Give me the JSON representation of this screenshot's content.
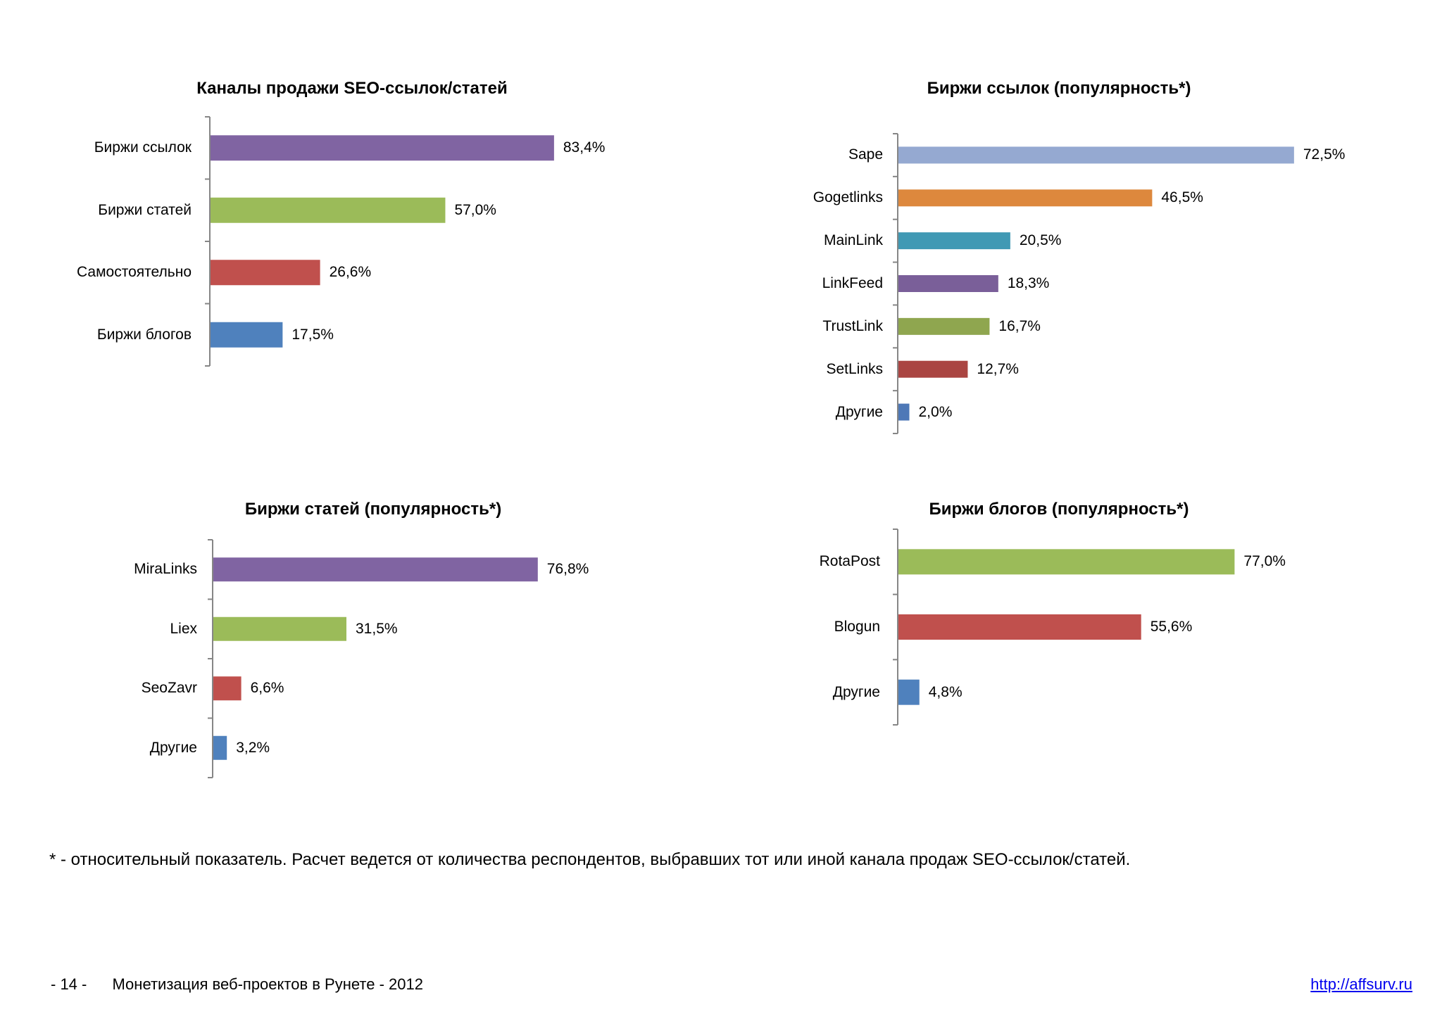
{
  "chart_data": [
    {
      "type": "bar",
      "orientation": "horizontal",
      "title": "Каналы продажи SEO-ссылок/статей",
      "categories": [
        "Биржи ссылок",
        "Биржи статей",
        "Самостоятельно",
        "Биржи блогов"
      ],
      "values": [
        83.4,
        57.0,
        26.6,
        17.5
      ],
      "value_labels": [
        "83,4%",
        "57,0%",
        "26,6%",
        "17,5%"
      ],
      "colors": [
        "#8064a2",
        "#9bbb59",
        "#c0504d",
        "#4f81bd"
      ],
      "xlim": [
        0,
        100
      ],
      "xlabel": "",
      "ylabel": ""
    },
    {
      "type": "bar",
      "orientation": "horizontal",
      "title": "Биржи ссылок (популярность*)",
      "categories": [
        "Sape",
        "Gogetlinks",
        "MainLink",
        "LinkFeed",
        "TrustLink",
        "SetLinks",
        "Другие"
      ],
      "values": [
        72.5,
        46.5,
        20.5,
        18.3,
        16.7,
        12.7,
        2.0
      ],
      "value_labels": [
        "72,5%",
        "46,5%",
        "20,5%",
        "18,3%",
        "16,7%",
        "12,7%",
        "2,0%"
      ],
      "colors": [
        "#95a9d1",
        "#dd883d",
        "#4099b4",
        "#7a5f99",
        "#8fa64f",
        "#aa4542",
        "#4e78b7"
      ],
      "xlim": [
        0,
        100
      ],
      "xlabel": "",
      "ylabel": ""
    },
    {
      "type": "bar",
      "orientation": "horizontal",
      "title": "Биржи статей (популярность*)",
      "categories": [
        "MiraLinks",
        "Liex",
        "SeoZavr",
        "Другие"
      ],
      "values": [
        76.8,
        31.5,
        6.6,
        3.2
      ],
      "value_labels": [
        "76,8%",
        "31,5%",
        "6,6%",
        "3,2%"
      ],
      "colors": [
        "#8064a2",
        "#9bbb59",
        "#c0504d",
        "#4f81bd"
      ],
      "xlim": [
        0,
        100
      ],
      "xlabel": "",
      "ylabel": ""
    },
    {
      "type": "bar",
      "orientation": "horizontal",
      "title": "Биржи блогов (популярность*)",
      "categories": [
        "RotaPost",
        "Blogun",
        "Другие"
      ],
      "values": [
        77.0,
        55.6,
        4.8
      ],
      "value_labels": [
        "77,0%",
        "55,6%",
        "4,8%"
      ],
      "colors": [
        "#9bbb59",
        "#c0504d",
        "#4f81bd"
      ],
      "xlim": [
        0,
        100
      ],
      "xlabel": "",
      "ylabel": ""
    }
  ],
  "footnote": "* - относительный показатель. Расчет ведется от количества респондентов, выбравших тот или иной канала продаж SEO-ссылок/статей.",
  "footer": {
    "page_number": "- 14 -",
    "doc_title": "Монетизация веб-проектов в Рунете - 2012",
    "link": "http://affsurv.ru"
  }
}
